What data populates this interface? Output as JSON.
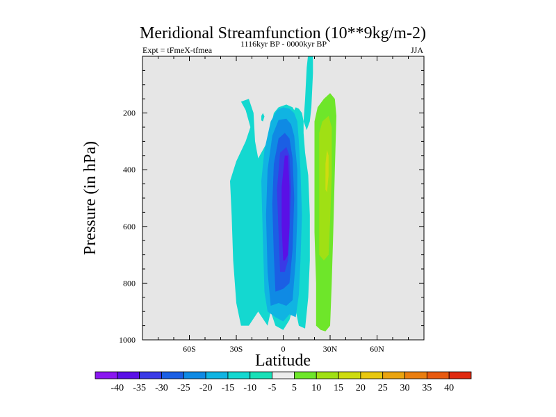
{
  "chart_data": {
    "type": "heatmap",
    "title": "Meridional Streamfunction (10**9kg/m-2)",
    "left_string": "Expt = tFmeX-tfmea",
    "center_string": "1116kyr BP - 0000kyr BP",
    "right_string": "JJA",
    "xlabel": "Latitude",
    "ylabel": "Pressure (in hPa)",
    "xlim": [
      -90,
      90
    ],
    "ylim": [
      1000,
      0
    ],
    "x_ticks": [
      {
        "value": -60,
        "label": "60S"
      },
      {
        "value": -30,
        "label": "30S"
      },
      {
        "value": 0,
        "label": "0"
      },
      {
        "value": 30,
        "label": "30N"
      },
      {
        "value": 60,
        "label": "60N"
      }
    ],
    "y_ticks": [
      200,
      400,
      600,
      800,
      1000
    ],
    "levels": [
      -40,
      -35,
      -30,
      -25,
      -20,
      -15,
      -10,
      -5,
      5,
      10,
      15,
      20,
      25,
      30,
      35,
      40
    ],
    "colors": [
      "#8a17f0",
      "#5a10e6",
      "#3a3ae6",
      "#1b5fe4",
      "#0f8ae4",
      "#10b4e2",
      "#14d8d0",
      "#18e0b8",
      "#ececec",
      "#6ee62a",
      "#a0e014",
      "#cedc10",
      "#e8c810",
      "#eaa410",
      "#ea7e10",
      "#e85a10",
      "#e02a10"
    ],
    "background_color": "#e6e6e6",
    "features": [
      {
        "name": "southern-cell",
        "contours": [
          {
            "level": -10,
            "color": "#14d8d0",
            "poly": [
              [
                -27,
                950
              ],
              [
                -30,
                870
              ],
              [
                -32,
                720
              ],
              [
                -33,
                560
              ],
              [
                -34,
                440
              ],
              [
                -30,
                370
              ],
              [
                -24,
                300
              ],
              [
                -21,
                250
              ],
              [
                -24,
                190
              ],
              [
                -27,
                160
              ],
              [
                -22,
                150
              ],
              [
                -19,
                200
              ],
              [
                -18,
                300
              ],
              [
                -16,
                360
              ],
              [
                -10,
                300
              ],
              [
                -6,
                200
              ],
              [
                -3,
                180
              ],
              [
                2,
                170
              ],
              [
                6,
                180
              ],
              [
                7,
                190
              ],
              [
                8,
                180
              ],
              [
                10,
                185
              ],
              [
                12,
                200
              ],
              [
                13,
                230
              ],
              [
                13,
                270
              ],
              [
                14,
                340
              ],
              [
                16,
                420
              ],
              [
                17,
                560
              ],
              [
                17,
                720
              ],
              [
                16,
                850
              ],
              [
                14,
                960
              ],
              [
                10,
                950
              ],
              [
                7,
                870
              ],
              [
                4,
                930
              ],
              [
                0,
                965
              ],
              [
                -5,
                950
              ],
              [
                -8,
                900
              ],
              [
                -10,
                950
              ],
              [
                -16,
                900
              ],
              [
                -22,
                950
              ]
            ]
          },
          {
            "level": -15,
            "color": "#10b4e2",
            "poly": [
              [
                -10,
                900
              ],
              [
                -12,
                830
              ],
              [
                -13,
                650
              ],
              [
                -14,
                440
              ],
              [
                -12,
                330
              ],
              [
                -8,
                230
              ],
              [
                -4,
                190
              ],
              [
                0,
                180
              ],
              [
                4,
                185
              ],
              [
                7,
                200
              ],
              [
                9,
                230
              ],
              [
                10,
                300
              ],
              [
                11,
                400
              ],
              [
                12,
                560
              ],
              [
                11,
                720
              ],
              [
                10,
                840
              ],
              [
                8,
                920
              ],
              [
                4,
                910
              ],
              [
                0,
                935
              ],
              [
                -5,
                920
              ]
            ]
          },
          {
            "level": -20,
            "color": "#0f8ae4",
            "poly": [
              [
                -8,
                880
              ],
              [
                -10,
                760
              ],
              [
                -11,
                560
              ],
              [
                -10,
                400
              ],
              [
                -7,
                280
              ],
              [
                -3,
                225
              ],
              [
                2,
                220
              ],
              [
                5,
                240
              ],
              [
                7,
                280
              ],
              [
                9,
                400
              ],
              [
                9,
                560
              ],
              [
                8,
                720
              ],
              [
                6,
                860
              ],
              [
                2,
                880
              ],
              [
                -3,
                870
              ]
            ]
          },
          {
            "level": -25,
            "color": "#1b5fe4",
            "poly": [
              [
                -5,
                830
              ],
              [
                -6,
                700
              ],
              [
                -7,
                520
              ],
              [
                -6,
                380
              ],
              [
                -3,
                290
              ],
              [
                1,
                270
              ],
              [
                4,
                290
              ],
              [
                6,
                360
              ],
              [
                7,
                500
              ],
              [
                6,
                680
              ],
              [
                4,
                800
              ],
              [
                0,
                820
              ]
            ]
          },
          {
            "level": -30,
            "color": "#3a3ae6",
            "poly": [
              [
                -2,
                760
              ],
              [
                -3,
                620
              ],
              [
                -4,
                470
              ],
              [
                -2,
                340
              ],
              [
                2,
                320
              ],
              [
                4,
                350
              ],
              [
                5,
                470
              ],
              [
                4,
                620
              ],
              [
                3,
                720
              ],
              [
                1,
                760
              ]
            ]
          },
          {
            "level": -35,
            "color": "#5a10e6",
            "poly": [
              [
                0,
                720
              ],
              [
                -1,
                600
              ],
              [
                -1,
                460
              ],
              [
                1,
                350
              ],
              [
                3,
                350
              ],
              [
                4,
                460
              ],
              [
                4,
                600
              ],
              [
                3,
                700
              ],
              [
                1,
                720
              ]
            ]
          }
        ]
      },
      {
        "name": "narrow-jet",
        "contours": [
          {
            "level": -10,
            "color": "#14d8d0",
            "poly": [
              [
                13,
                230
              ],
              [
                14,
                150
              ],
              [
                15,
                40
              ],
              [
                16,
                -10
              ],
              [
                19,
                -10
              ],
              [
                19,
                60
              ],
              [
                18,
                180
              ],
              [
                17,
                230
              ],
              [
                15,
                260
              ]
            ]
          }
        ]
      },
      {
        "name": "northern-cell",
        "contours": [
          {
            "level": 5,
            "color": "#6ee62a",
            "poly": [
              [
                21,
                950
              ],
              [
                21,
                800
              ],
              [
                20,
                620
              ],
              [
                20,
                400
              ],
              [
                20,
                230
              ],
              [
                22,
                180
              ],
              [
                26,
                150
              ],
              [
                30,
                130
              ],
              [
                33,
                150
              ],
              [
                34,
                210
              ],
              [
                33,
                400
              ],
              [
                32,
                620
              ],
              [
                31,
                800
              ],
              [
                30,
                950
              ],
              [
                27,
                970
              ],
              [
                24,
                965
              ]
            ]
          },
          {
            "level": 10,
            "color": "#a0e014",
            "poly": [
              [
                23,
                700
              ],
              [
                23,
                560
              ],
              [
                23,
                400
              ],
              [
                23,
                270
              ],
              [
                25,
                230
              ],
              [
                29,
                210
              ],
              [
                31,
                250
              ],
              [
                31,
                420
              ],
              [
                30,
                580
              ],
              [
                29,
                700
              ],
              [
                26,
                720
              ]
            ]
          },
          {
            "level": 15,
            "color": "#cedc10",
            "poly": [
              [
                27,
                470
              ],
              [
                27,
                380
              ],
              [
                28,
                330
              ],
              [
                29,
                350
              ],
              [
                29,
                420
              ],
              [
                28,
                480
              ]
            ]
          }
        ]
      },
      {
        "name": "left-island",
        "contours": [
          {
            "level": -10,
            "color": "#14d8d0",
            "poly": [
              [
                -14,
                210
              ],
              [
                -13,
                200
              ],
              [
                -12,
                212
              ],
              [
                -13,
                230
              ],
              [
                -14,
                226
              ]
            ]
          }
        ]
      }
    ]
  }
}
